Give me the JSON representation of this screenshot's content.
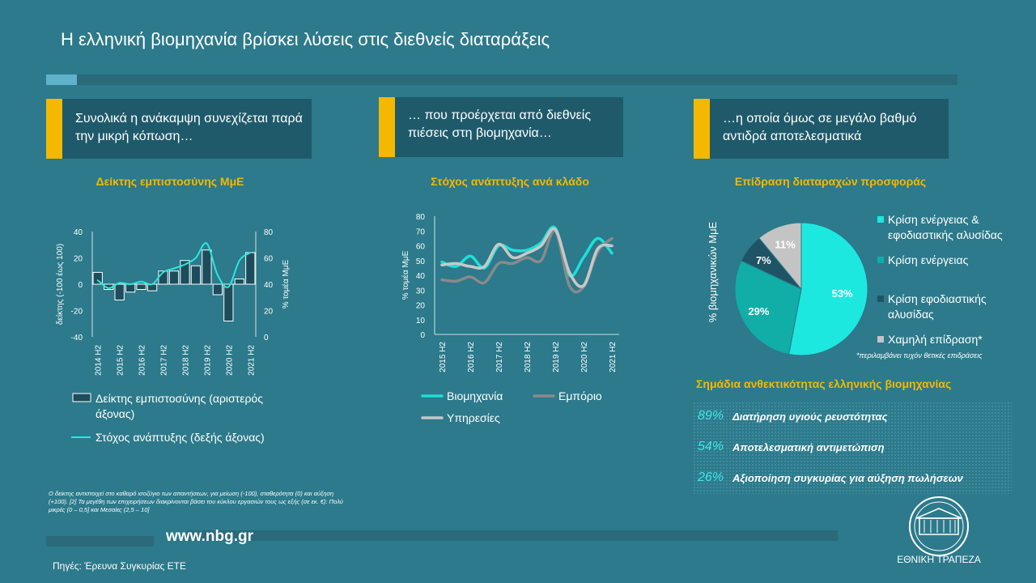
{
  "header": {
    "title": "Η ελληνική βιομηχανία βρίσκει λύσεις στις διεθνείς διαταράξεις"
  },
  "panels": [
    {
      "text": "Συνολικά η ανάκαμψη συνεχίζεται παρά την μικρή κόπωση…"
    },
    {
      "text": "… που προέρχεται από διεθνείς πιέσεις στη βιομηχανία…"
    },
    {
      "text": "…η οποία όμως σε μεγάλο βαθμό αντιδρά αποτελεσματικά"
    }
  ],
  "chart_data": [
    {
      "type": "combo",
      "title": "Δείκτης εμπιστοσύνης ΜμΕ",
      "categories": [
        "2014 H2",
        null,
        "2015 H2",
        null,
        "2016 H2",
        null,
        "2017 H2",
        null,
        "2018 H2",
        null,
        "2019 H2",
        null,
        "2020 H2",
        null,
        "2021 H2"
      ],
      "series": [
        {
          "name": "Δείκτης εμπιστοσύνης (αριστερός άξονας)",
          "type": "bar",
          "axis": "y",
          "color": "#1d4d5c",
          "values": [
            9,
            -4,
            -12,
            -6,
            -4,
            -5,
            10,
            10,
            18,
            14,
            26,
            -8,
            -28,
            4,
            24
          ]
        },
        {
          "name": "Στόχος ανάπτυξης (δεξής άξονας)",
          "type": "line",
          "axis": "y2",
          "color": "#2ee6dc",
          "values": [
            43,
            37,
            41,
            40,
            42,
            40,
            49,
            52,
            55,
            60,
            71,
            47,
            38,
            58,
            64
          ]
        }
      ],
      "ylim": [
        -40,
        40
      ],
      "yticks": [
        -40,
        -20,
        0,
        20,
        40
      ],
      "y2lim": [
        0,
        80
      ],
      "y2ticks": [
        0,
        20,
        40,
        60,
        80
      ],
      "ylabel": "δείκτης (-100 έως 100)",
      "y2label": "% τομέα ΜμΕ"
    },
    {
      "type": "line",
      "title": "Στόχος ανάπτυξης ανά κλάδο",
      "categories": [
        "2015 H2",
        null,
        "2016 H2",
        null,
        "2017 H2",
        null,
        "2018 H2",
        null,
        "2019 H2",
        null,
        "2020 H2",
        null,
        "2021 H2"
      ],
      "series": [
        {
          "name": "Βιομηχανία",
          "color": "#1de0d8",
          "values": [
            49,
            46,
            53,
            45,
            60,
            57,
            57,
            62,
            72,
            40,
            52,
            65,
            55
          ]
        },
        {
          "name": "Εμπόριο",
          "color": "#8a8a8a",
          "values": [
            37,
            36,
            39,
            35,
            48,
            48,
            52,
            50,
            70,
            33,
            32,
            56,
            65
          ]
        },
        {
          "name": "Υπηρεσίες",
          "color": "#c8c8c8",
          "values": [
            47,
            48,
            46,
            46,
            61,
            52,
            55,
            60,
            71,
            42,
            33,
            58,
            60
          ]
        }
      ],
      "ylim": [
        0,
        80
      ],
      "yticks": [
        0,
        10,
        20,
        30,
        40,
        50,
        60,
        70,
        80
      ],
      "ylabel": "% τομέα ΜμΕ"
    },
    {
      "type": "pie",
      "title": "Επίδραση διαταραχών προσφοράς",
      "ylabel": "% βιομηχανικών ΜμΕ",
      "categories": [
        "Κρίση ενέργειας & εφοδιαστικής αλυσίδας",
        "Κρίση ενέργειας",
        "Κρίση εφοδιαστικής αλυσίδας",
        "Χαμηλή επίδραση*"
      ],
      "values": [
        53,
        29,
        7,
        11
      ],
      "value_labels": [
        "53%",
        "29%",
        "7%",
        "11%"
      ],
      "colors": [
        "#1de8e0",
        "#10aea6",
        "#1e5466",
        "#c4c4c4"
      ],
      "note": "*περιλαμβάνει τυχόν θετικές επιδράσεις"
    }
  ],
  "resilience": {
    "title": "Σημάδια ανθεκτικότητας ελληνικής βιομηχανίας",
    "items": [
      {
        "value": "89%",
        "text": "Διατήρηση υγιούς ρευστότητας"
      },
      {
        "value": "54%",
        "text": "Αποτελεσματική αντιμετώπιση"
      },
      {
        "value": "26%",
        "text": "Αξιοποίηση συγκυρίας για αύξηση πωλήσεων"
      }
    ]
  },
  "footer": {
    "note": "Ο δείκτης αντιστοιχεί στο καθαρό ισοζύγιο των απαντήσεων, για μείωση (-100), σταθερότητα (0) και αύξηση (+100). [2] Τα μεγέθη των επιχειρήσεων διακρίνονται βάσει του κύκλου εργασιών τους ως εξής (σε εκ. €): Πολύ μικρές (0 – 0,5] και Μεσαίες (2,5 – 10]",
    "url": "www.nbg.gr",
    "source": "Πηγές: Έρευνα Συγκυρίας ΕΤΕ",
    "logo_text": "ΕΘΝΙΚΗ ΤΡΑΠΕΖΑ"
  }
}
